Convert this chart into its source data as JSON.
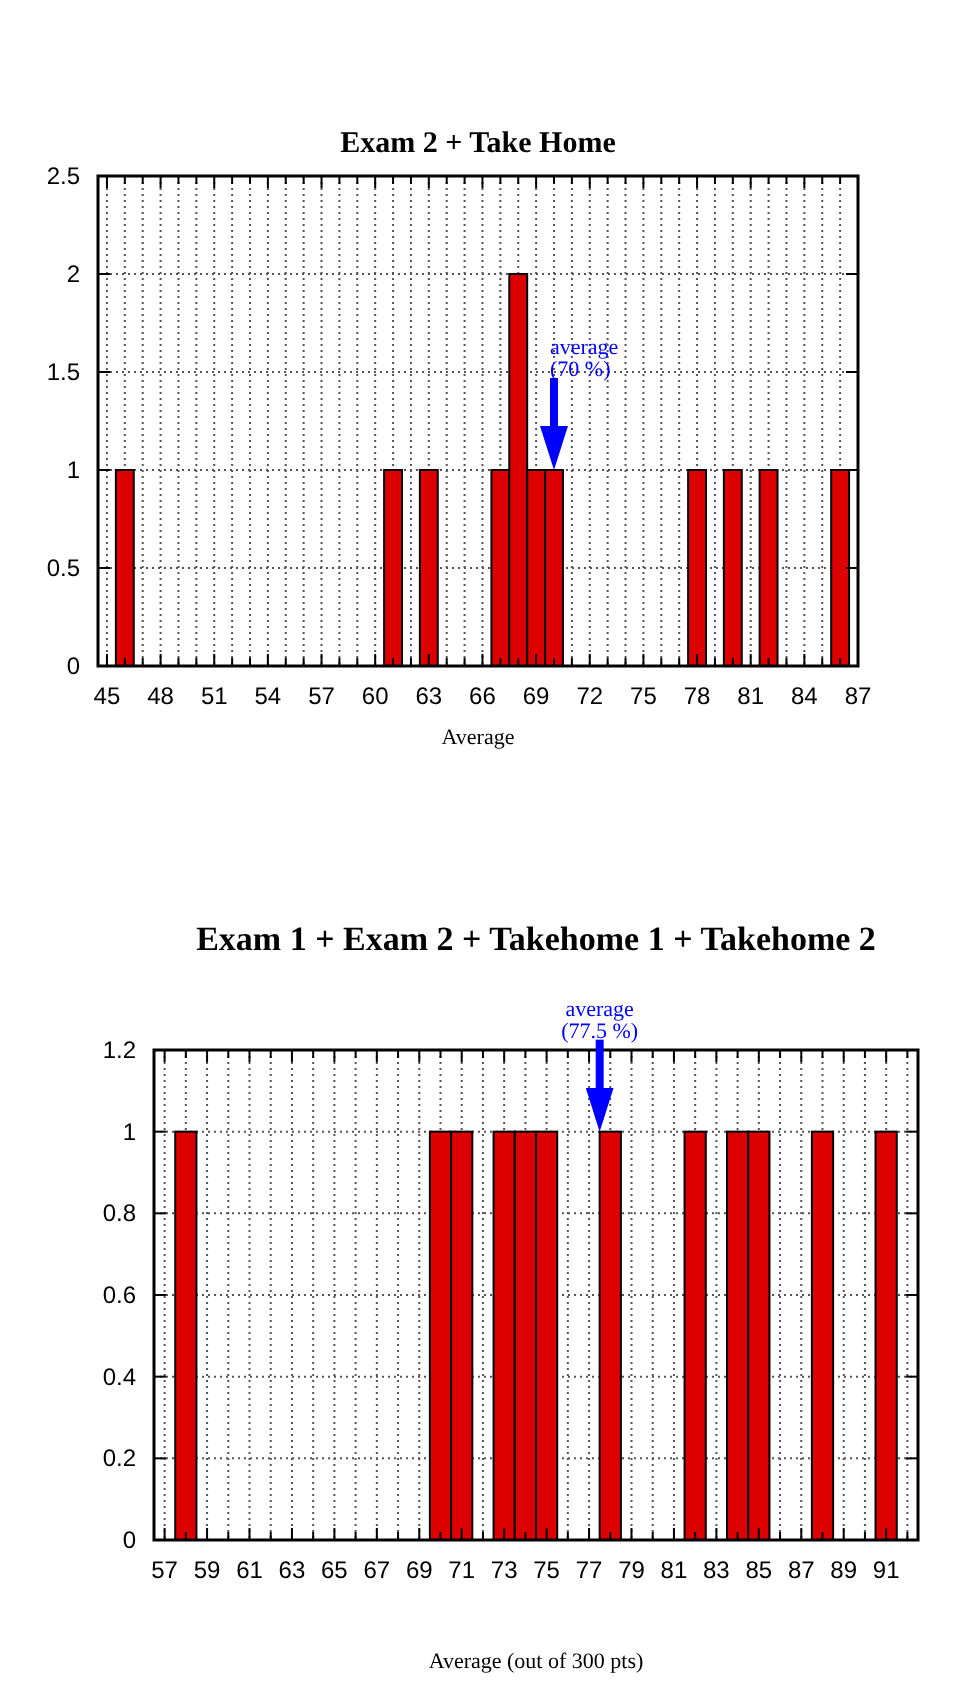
{
  "chart_data": [
    {
      "type": "bar",
      "title": "Exam 2 + Take Home",
      "xlabel": "Average",
      "color": "#dd0000",
      "x": [
        46,
        61,
        63,
        67,
        68,
        69,
        70,
        78,
        80,
        82,
        86
      ],
      "values": [
        1,
        1,
        1,
        1,
        2,
        1,
        1,
        1,
        1,
        1,
        1
      ],
      "xlim": [
        44.5,
        87
      ],
      "xticks": [
        45,
        {
          "value": 46,
          "label": null
        },
        {
          "value": 47,
          "label": null
        },
        48,
        {
          "value": 49,
          "label": null
        },
        {
          "value": 50,
          "label": null
        },
        51,
        {
          "value": 52,
          "label": null
        },
        {
          "value": 53,
          "label": null
        },
        54,
        {
          "value": 55,
          "label": null
        },
        {
          "value": 56,
          "label": null
        },
        57,
        {
          "value": 58,
          "label": null
        },
        {
          "value": 59,
          "label": null
        },
        60,
        {
          "value": 61,
          "label": null
        },
        {
          "value": 62,
          "label": null
        },
        63,
        {
          "value": 64,
          "label": null
        },
        {
          "value": 65,
          "label": null
        },
        66,
        {
          "value": 67,
          "label": null
        },
        {
          "value": 68,
          "label": null
        },
        69,
        {
          "value": 70,
          "label": null
        },
        {
          "value": 71,
          "label": null
        },
        72,
        {
          "value": 73,
          "label": null
        },
        {
          "value": 74,
          "label": null
        },
        75,
        {
          "value": 76,
          "label": null
        },
        {
          "value": 77,
          "label": null
        },
        78,
        {
          "value": 79,
          "label": null
        },
        {
          "value": 80,
          "label": null
        },
        81,
        {
          "value": 82,
          "label": null
        },
        {
          "value": 83,
          "label": null
        },
        84,
        {
          "value": 85,
          "label": null
        },
        {
          "value": 86,
          "label": null
        },
        87
      ],
      "ylim": [
        0,
        2.5
      ],
      "yticks": [
        0,
        0.5,
        1,
        1.5,
        2,
        2.5
      ],
      "grid": true,
      "annotations": [
        {
          "text": "average\n(70 %)",
          "x": 70,
          "y": 1
        }
      ]
    },
    {
      "type": "bar",
      "title": "Exam 1 + Exam 2 + Takehome 1 + Takehome 2",
      "xlabel": "Average (out of 300 pts)",
      "color": "#dd0000",
      "x": [
        58,
        70,
        71,
        73,
        74,
        75,
        78,
        82,
        84,
        85,
        88,
        91
      ],
      "values": [
        1,
        1,
        1,
        1,
        1,
        1,
        1,
        1,
        1,
        1,
        1,
        1
      ],
      "xlim": [
        56.5,
        92.5
      ],
      "xticks": [
        57,
        {
          "value": 58,
          "label": null
        },
        59,
        {
          "value": 60,
          "label": null
        },
        61,
        {
          "value": 62,
          "label": null
        },
        63,
        {
          "value": 64,
          "label": null
        },
        65,
        {
          "value": 66,
          "label": null
        },
        67,
        {
          "value": 68,
          "label": null
        },
        69,
        {
          "value": 70,
          "label": null
        },
        71,
        {
          "value": 72,
          "label": null
        },
        73,
        {
          "value": 74,
          "label": null
        },
        75,
        {
          "value": 76,
          "label": null
        },
        77,
        {
          "value": 78,
          "label": null
        },
        79,
        {
          "value": 80,
          "label": null
        },
        81,
        {
          "value": 82,
          "label": null
        },
        83,
        {
          "value": 84,
          "label": null
        },
        85,
        {
          "value": 86,
          "label": null
        },
        87,
        {
          "value": 88,
          "label": null
        },
        89,
        {
          "value": 90,
          "label": null
        },
        91,
        {
          "value": 92,
          "label": null
        }
      ],
      "ylim": [
        0,
        1.2
      ],
      "yticks": [
        0,
        0.2,
        0.4,
        0.6,
        0.8,
        1,
        1.2
      ],
      "grid": true,
      "annotations": [
        {
          "text": "average\n(77.5 %)",
          "x": 77.5,
          "y": 1
        }
      ]
    }
  ]
}
